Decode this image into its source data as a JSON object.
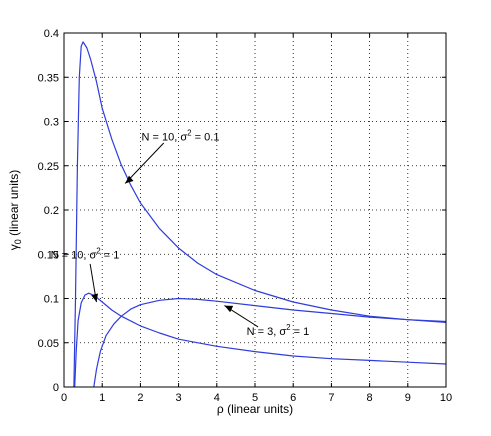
{
  "chart_data": {
    "type": "line",
    "title": "",
    "xlabel": "ρ (linear units)",
    "ylabel": "γ",
    "ylabel_subscript": "0",
    "ylabel_suffix": " (linear units)",
    "xlim": [
      0,
      10
    ],
    "ylim": [
      0,
      0.4
    ],
    "x_ticks": [
      0,
      1,
      2,
      3,
      4,
      5,
      6,
      7,
      8,
      9,
      10
    ],
    "x_tick_labels": [
      "0",
      "1",
      "2",
      "3",
      "4",
      "5",
      "6",
      "7",
      "8",
      "9",
      "10"
    ],
    "y_ticks": [
      0,
      0.05,
      0.1,
      0.15,
      0.2,
      0.25,
      0.3,
      0.35,
      0.4
    ],
    "y_tick_labels": [
      "0",
      "0.05",
      "0.1",
      "0.15",
      "0.2",
      "0.25",
      "0.3",
      "0.35",
      "0.4"
    ],
    "grid": true,
    "line_color": "#2f3cdc",
    "series": [
      {
        "points": [
          [
            0.26,
            0.0
          ],
          [
            0.3,
            0.1
          ],
          [
            0.35,
            0.25
          ],
          [
            0.4,
            0.35
          ],
          [
            0.45,
            0.385
          ],
          [
            0.5,
            0.39
          ],
          [
            0.6,
            0.383
          ],
          [
            0.7,
            0.37
          ],
          [
            0.85,
            0.345
          ],
          [
            1.0,
            0.315
          ],
          [
            1.25,
            0.28
          ],
          [
            1.5,
            0.251
          ],
          [
            1.75,
            0.228
          ],
          [
            2.0,
            0.208
          ],
          [
            2.5,
            0.179
          ],
          [
            3.0,
            0.157
          ],
          [
            3.5,
            0.14
          ],
          [
            4.0,
            0.127
          ],
          [
            5.0,
            0.109
          ],
          [
            6.0,
            0.096
          ],
          [
            7.0,
            0.087
          ],
          [
            8.0,
            0.08
          ],
          [
            9.0,
            0.076
          ],
          [
            10.0,
            0.073
          ]
        ]
      },
      {
        "points": [
          [
            0.28,
            0.0
          ],
          [
            0.32,
            0.04
          ],
          [
            0.37,
            0.075
          ],
          [
            0.45,
            0.095
          ],
          [
            0.55,
            0.104
          ],
          [
            0.65,
            0.106
          ],
          [
            0.8,
            0.103
          ],
          [
            1.0,
            0.096
          ],
          [
            1.25,
            0.087
          ],
          [
            1.5,
            0.08
          ],
          [
            2.0,
            0.069
          ],
          [
            2.5,
            0.061
          ],
          [
            3.0,
            0.054
          ],
          [
            4.0,
            0.046
          ],
          [
            5.0,
            0.04
          ],
          [
            6.0,
            0.035
          ],
          [
            7.0,
            0.032
          ],
          [
            8.0,
            0.03
          ],
          [
            9.0,
            0.028
          ],
          [
            10.0,
            0.026
          ]
        ]
      },
      {
        "points": [
          [
            0.78,
            0.0
          ],
          [
            0.85,
            0.02
          ],
          [
            0.95,
            0.04
          ],
          [
            1.1,
            0.058
          ],
          [
            1.3,
            0.071
          ],
          [
            1.5,
            0.08
          ],
          [
            1.75,
            0.088
          ],
          [
            2.0,
            0.093
          ],
          [
            2.5,
            0.098
          ],
          [
            3.0,
            0.1
          ],
          [
            3.5,
            0.099
          ],
          [
            4.0,
            0.097
          ],
          [
            5.0,
            0.092
          ],
          [
            6.0,
            0.087
          ],
          [
            7.0,
            0.083
          ],
          [
            8.0,
            0.079
          ],
          [
            9.0,
            0.076
          ],
          [
            10.0,
            0.074
          ]
        ]
      }
    ],
    "annotations": [
      {
        "name": "annotation-n10-s01",
        "pre": "N = 10, σ",
        "sup": "2",
        "post": " = 0.1",
        "label_at": [
          3.05,
          0.283
        ],
        "arrow_to": [
          1.6,
          0.23
        ]
      },
      {
        "name": "annotation-n10-s1",
        "pre": "N = 10, σ",
        "sup": "2",
        "post": " = 1",
        "label_at": [
          0.55,
          0.15
        ],
        "arrow_to": [
          0.85,
          0.096
        ]
      },
      {
        "name": "annotation-n3-s1",
        "pre": "N = 3, σ",
        "sup": "2",
        "post": " = 1",
        "label_at": [
          5.6,
          0.063
        ],
        "arrow_to": [
          4.2,
          0.092
        ]
      }
    ]
  }
}
